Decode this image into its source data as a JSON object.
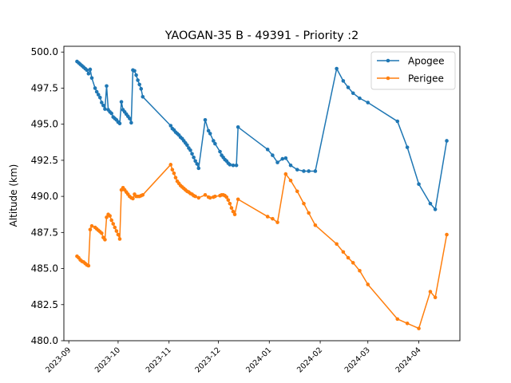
{
  "chart_data": {
    "type": "line",
    "title": "YAOGAN-35 B - 49391 - Priority :2",
    "xlabel": "",
    "ylabel": "Altitude (km)",
    "xlim": [
      "2023-08-29",
      "2024-04-26"
    ],
    "ylim": [
      480.0,
      500.4
    ],
    "x_ticks": [
      "2023-09",
      "2023-10",
      "2023-11",
      "2023-12",
      "2024-01",
      "2024-02",
      "2024-03",
      "2024-04"
    ],
    "y_ticks": [
      "480.0",
      "482.5",
      "485.0",
      "487.5",
      "490.0",
      "492.5",
      "495.0",
      "497.5",
      "500.0"
    ],
    "grid": false,
    "legend_position": "top-right",
    "series": [
      {
        "name": "Apogee",
        "color": "#1f77b4",
        "points": [
          [
            "2023-09-06",
            499.35
          ],
          [
            "2023-09-07",
            499.25
          ],
          [
            "2023-09-08",
            499.15
          ],
          [
            "2023-09-09",
            499.05
          ],
          [
            "2023-09-10",
            498.95
          ],
          [
            "2023-09-11",
            498.85
          ],
          [
            "2023-09-12",
            498.75
          ],
          [
            "2023-09-13",
            498.5
          ],
          [
            "2023-09-14",
            498.8
          ],
          [
            "2023-09-15",
            498.2
          ],
          [
            "2023-09-17",
            497.5
          ],
          [
            "2023-09-18",
            497.25
          ],
          [
            "2023-09-19",
            497.05
          ],
          [
            "2023-09-20",
            496.85
          ],
          [
            "2023-09-21",
            496.5
          ],
          [
            "2023-09-22",
            496.3
          ],
          [
            "2023-09-23",
            496.05
          ],
          [
            "2023-09-24",
            497.65
          ],
          [
            "2023-09-25",
            496.0
          ],
          [
            "2023-09-26",
            495.85
          ],
          [
            "2023-09-27",
            495.75
          ],
          [
            "2023-09-28",
            495.5
          ],
          [
            "2023-09-29",
            495.4
          ],
          [
            "2023-09-30",
            495.3
          ],
          [
            "2023-10-01",
            495.15
          ],
          [
            "2023-10-02",
            495.05
          ],
          [
            "2023-10-03",
            496.55
          ],
          [
            "2023-10-04",
            496.0
          ],
          [
            "2023-10-05",
            495.85
          ],
          [
            "2023-10-06",
            495.7
          ],
          [
            "2023-10-07",
            495.55
          ],
          [
            "2023-10-08",
            495.4
          ],
          [
            "2023-10-09",
            495.1
          ],
          [
            "2023-10-10",
            498.75
          ],
          [
            "2023-10-11",
            498.7
          ],
          [
            "2023-10-12",
            498.4
          ],
          [
            "2023-10-13",
            498.05
          ],
          [
            "2023-10-14",
            497.75
          ],
          [
            "2023-10-15",
            497.45
          ],
          [
            "2023-10-16",
            496.9
          ],
          [
            "2023-11-02",
            494.9
          ],
          [
            "2023-11-03",
            494.7
          ],
          [
            "2023-11-04",
            494.6
          ],
          [
            "2023-11-05",
            494.45
          ],
          [
            "2023-11-06",
            494.35
          ],
          [
            "2023-11-07",
            494.25
          ],
          [
            "2023-11-08",
            494.1
          ],
          [
            "2023-11-09",
            494.0
          ],
          [
            "2023-11-10",
            493.85
          ],
          [
            "2023-11-11",
            493.7
          ],
          [
            "2023-11-12",
            493.55
          ],
          [
            "2023-11-13",
            493.35
          ],
          [
            "2023-11-14",
            493.2
          ],
          [
            "2023-11-15",
            492.95
          ],
          [
            "2023-11-16",
            492.7
          ],
          [
            "2023-11-17",
            492.45
          ],
          [
            "2023-11-18",
            492.25
          ],
          [
            "2023-11-19",
            491.95
          ],
          [
            "2023-11-23",
            495.3
          ],
          [
            "2023-11-25",
            494.55
          ],
          [
            "2023-11-26",
            494.35
          ],
          [
            "2023-11-28",
            493.85
          ],
          [
            "2023-11-29",
            493.65
          ],
          [
            "2023-12-02",
            493.1
          ],
          [
            "2023-12-03",
            492.85
          ],
          [
            "2023-12-04",
            492.7
          ],
          [
            "2023-12-05",
            492.55
          ],
          [
            "2023-12-06",
            492.45
          ],
          [
            "2023-12-07",
            492.3
          ],
          [
            "2023-12-08",
            492.2
          ],
          [
            "2023-12-10",
            492.15
          ],
          [
            "2023-12-12",
            492.15
          ],
          [
            "2023-12-13",
            494.8
          ],
          [
            "2023-12-31",
            493.25
          ],
          [
            "2024-01-03",
            492.85
          ],
          [
            "2024-01-06",
            492.35
          ],
          [
            "2024-01-09",
            492.6
          ],
          [
            "2024-01-11",
            492.65
          ],
          [
            "2024-01-14",
            492.15
          ],
          [
            "2024-01-18",
            491.85
          ],
          [
            "2024-01-22",
            491.75
          ],
          [
            "2024-01-25",
            491.75
          ],
          [
            "2024-01-29",
            491.75
          ],
          [
            "2024-02-11",
            498.85
          ],
          [
            "2024-02-15",
            498.0
          ],
          [
            "2024-02-18",
            497.55
          ],
          [
            "2024-02-21",
            497.15
          ],
          [
            "2024-02-25",
            496.8
          ],
          [
            "2024-03-01",
            496.5
          ],
          [
            "2024-03-19",
            495.2
          ],
          [
            "2024-03-25",
            493.4
          ],
          [
            "2024-04-01",
            490.85
          ],
          [
            "2024-04-08",
            489.5
          ],
          [
            "2024-04-11",
            489.1
          ],
          [
            "2024-04-18",
            493.85
          ]
        ]
      },
      {
        "name": "Perigee",
        "color": "#ff7f0e",
        "points": [
          [
            "2023-09-06",
            485.85
          ],
          [
            "2023-09-07",
            485.75
          ],
          [
            "2023-09-08",
            485.6
          ],
          [
            "2023-09-09",
            485.5
          ],
          [
            "2023-09-10",
            485.45
          ],
          [
            "2023-09-11",
            485.35
          ],
          [
            "2023-09-12",
            485.25
          ],
          [
            "2023-09-13",
            485.2
          ],
          [
            "2023-09-14",
            487.7
          ],
          [
            "2023-09-15",
            487.95
          ],
          [
            "2023-09-17",
            487.85
          ],
          [
            "2023-09-18",
            487.75
          ],
          [
            "2023-09-19",
            487.65
          ],
          [
            "2023-09-20",
            487.55
          ],
          [
            "2023-09-21",
            487.45
          ],
          [
            "2023-09-22",
            487.15
          ],
          [
            "2023-09-23",
            487.0
          ],
          [
            "2023-09-24",
            488.55
          ],
          [
            "2023-09-25",
            488.75
          ],
          [
            "2023-09-26",
            488.65
          ],
          [
            "2023-09-27",
            488.35
          ],
          [
            "2023-09-28",
            488.1
          ],
          [
            "2023-09-29",
            487.85
          ],
          [
            "2023-09-30",
            487.6
          ],
          [
            "2023-10-01",
            487.35
          ],
          [
            "2023-10-02",
            487.05
          ],
          [
            "2023-10-03",
            490.45
          ],
          [
            "2023-10-04",
            490.6
          ],
          [
            "2023-10-05",
            490.45
          ],
          [
            "2023-10-06",
            490.3
          ],
          [
            "2023-10-07",
            490.15
          ],
          [
            "2023-10-08",
            490.0
          ],
          [
            "2023-10-09",
            489.9
          ],
          [
            "2023-10-10",
            489.85
          ],
          [
            "2023-10-11",
            490.15
          ],
          [
            "2023-10-12",
            490.0
          ],
          [
            "2023-10-13",
            490.0
          ],
          [
            "2023-10-14",
            490.0
          ],
          [
            "2023-10-15",
            490.05
          ],
          [
            "2023-10-16",
            490.1
          ],
          [
            "2023-11-02",
            492.2
          ],
          [
            "2023-11-03",
            491.85
          ],
          [
            "2023-11-04",
            491.6
          ],
          [
            "2023-11-05",
            491.3
          ],
          [
            "2023-11-06",
            491.05
          ],
          [
            "2023-11-07",
            490.9
          ],
          [
            "2023-11-08",
            490.75
          ],
          [
            "2023-11-09",
            490.65
          ],
          [
            "2023-11-10",
            490.55
          ],
          [
            "2023-11-11",
            490.45
          ],
          [
            "2023-11-12",
            490.35
          ],
          [
            "2023-11-13",
            490.3
          ],
          [
            "2023-11-14",
            490.2
          ],
          [
            "2023-11-15",
            490.15
          ],
          [
            "2023-11-16",
            490.05
          ],
          [
            "2023-11-17",
            490.0
          ],
          [
            "2023-11-19",
            489.9
          ],
          [
            "2023-11-23",
            490.1
          ],
          [
            "2023-11-25",
            489.95
          ],
          [
            "2023-11-26",
            489.9
          ],
          [
            "2023-11-28",
            489.95
          ],
          [
            "2023-11-29",
            490.0
          ],
          [
            "2023-12-02",
            490.05
          ],
          [
            "2023-12-03",
            490.1
          ],
          [
            "2023-12-04",
            490.1
          ],
          [
            "2023-12-05",
            490.05
          ],
          [
            "2023-12-06",
            489.95
          ],
          [
            "2023-12-07",
            489.75
          ],
          [
            "2023-12-08",
            489.5
          ],
          [
            "2023-12-09",
            489.2
          ],
          [
            "2023-12-10",
            488.95
          ],
          [
            "2023-12-11",
            488.75
          ],
          [
            "2023-12-13",
            489.8
          ],
          [
            "2023-12-31",
            488.6
          ],
          [
            "2024-01-03",
            488.45
          ],
          [
            "2024-01-06",
            488.2
          ],
          [
            "2024-01-11",
            491.55
          ],
          [
            "2024-01-14",
            491.1
          ],
          [
            "2024-01-18",
            490.35
          ],
          [
            "2024-01-22",
            489.5
          ],
          [
            "2024-01-25",
            488.85
          ],
          [
            "2024-01-29",
            488.0
          ],
          [
            "2024-02-11",
            486.7
          ],
          [
            "2024-02-15",
            486.15
          ],
          [
            "2024-02-18",
            485.75
          ],
          [
            "2024-02-21",
            485.4
          ],
          [
            "2024-02-25",
            484.85
          ],
          [
            "2024-03-01",
            483.9
          ],
          [
            "2024-03-19",
            481.5
          ],
          [
            "2024-03-25",
            481.2
          ],
          [
            "2024-04-01",
            480.85
          ],
          [
            "2024-04-08",
            483.4
          ],
          [
            "2024-04-11",
            483.0
          ],
          [
            "2024-04-18",
            487.35
          ]
        ]
      }
    ]
  }
}
